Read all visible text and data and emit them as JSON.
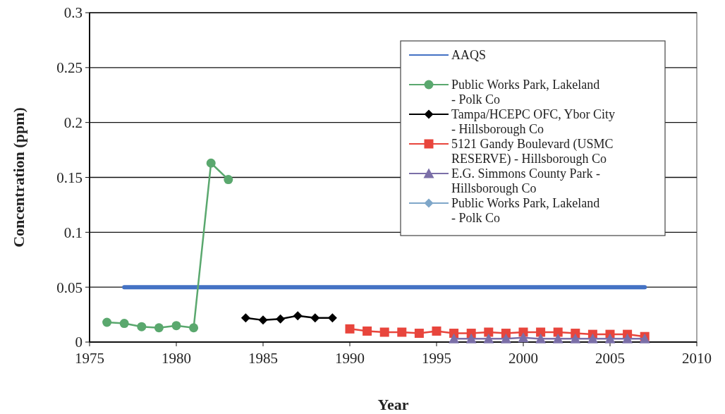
{
  "chart_data": {
    "type": "line",
    "xlabel": "Year",
    "ylabel": "Concentration (ppm)",
    "xlim": [
      1975,
      2010
    ],
    "xticks": [
      1975,
      1980,
      1985,
      1990,
      1995,
      2000,
      2005,
      2010
    ],
    "ylim": [
      0,
      0.3
    ],
    "yticks": [
      0,
      0.05,
      0.1,
      0.15,
      0.2,
      0.25,
      0.3
    ],
    "grid": "y",
    "legend": "top right",
    "series": [
      {
        "name": "AAQS",
        "color": "#4472c4",
        "marker": "none",
        "x": [
          1977,
          2007
        ],
        "values": [
          0.05,
          0.05
        ]
      },
      {
        "name": "Public Works Park, Lakeland - Polk Co",
        "color": "#5aa86e",
        "marker": "circle",
        "x": [
          1976,
          1977,
          1978,
          1979,
          1980,
          1981,
          1982,
          1983
        ],
        "values": [
          0.018,
          0.017,
          0.014,
          0.013,
          0.015,
          0.013,
          0.163,
          0.148
        ]
      },
      {
        "name": "Tampa/HCEPC OFC, Ybor City - Hillsborough Co",
        "color": "#000000",
        "marker": "diamond",
        "x": [
          1984,
          1985,
          1986,
          1987,
          1988,
          1989
        ],
        "values": [
          0.022,
          0.02,
          0.021,
          0.024,
          0.022,
          0.022
        ]
      },
      {
        "name": "5121 Gandy Boulevard (USMC RESERVE) - Hillsborough Co",
        "color": "#e8453c",
        "marker": "square",
        "x": [
          1990,
          1991,
          1992,
          1993,
          1994,
          1995,
          1996,
          1997,
          1998,
          1999,
          2000,
          2001,
          2002,
          2003,
          2004,
          2005,
          2006,
          2007
        ],
        "values": [
          0.012,
          0.01,
          0.009,
          0.009,
          0.008,
          0.01,
          0.008,
          0.008,
          0.009,
          0.008,
          0.009,
          0.009,
          0.009,
          0.008,
          0.007,
          0.007,
          0.007,
          0.005
        ]
      },
      {
        "name": "E.G. Simmons County Park - Hillsborough Co",
        "color": "#7b6fa8",
        "marker": "triangle",
        "x": [
          1996,
          1997,
          1998,
          1999,
          2000,
          2001,
          2002,
          2003,
          2004,
          2005,
          2006,
          2007
        ],
        "values": [
          0.003,
          0.003,
          0.003,
          0.003,
          0.004,
          0.003,
          0.003,
          0.003,
          0.003,
          0.003,
          0.003,
          0.003
        ]
      },
      {
        "name": "Public Works Park, Lakeland - Polk Co",
        "color": "#7fa7c9",
        "marker": "diamond"
      }
    ]
  }
}
